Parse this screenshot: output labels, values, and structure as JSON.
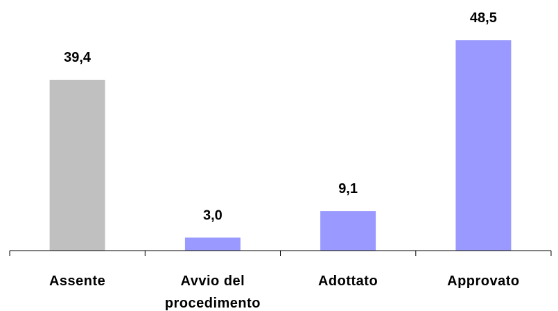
{
  "chart_data": {
    "type": "bar",
    "categories": [
      "Assente",
      "Avvio del procedimento",
      "Adottato",
      "Approvato"
    ],
    "category_lines": [
      [
        "Assente"
      ],
      [
        "Avvio del",
        "procedimento"
      ],
      [
        "Adottato"
      ],
      [
        "Approvato"
      ]
    ],
    "values": [
      39.4,
      3.0,
      9.1,
      48.5
    ],
    "value_labels": [
      "39,4",
      "3,0",
      "9,1",
      "48,5"
    ],
    "colors": [
      "#c0c0c0",
      "#9999ff",
      "#9999ff",
      "#9999ff"
    ],
    "title": "",
    "xlabel": "",
    "ylabel": "",
    "ylim": [
      0,
      48.5
    ],
    "grid": false,
    "legend": "none"
  }
}
